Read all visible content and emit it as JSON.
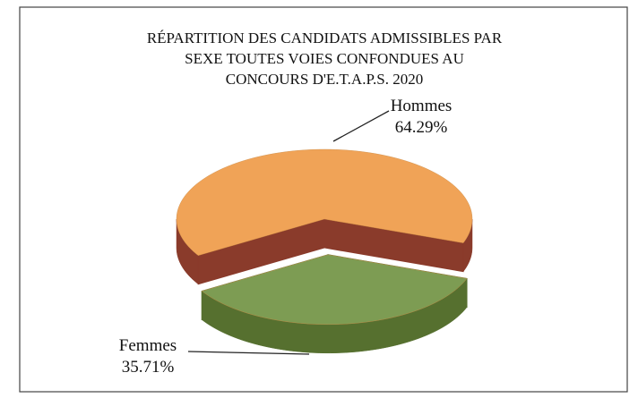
{
  "chart_data": {
    "type": "pie",
    "title": [
      "RÉPARTITION DES CANDIDATS ADMISSIBLES PAR",
      "SEXE TOUTES VOIES CONFONDUES AU",
      "CONCOURS D'E.T.A.P.S.  2020"
    ],
    "categories": [
      "Hommes",
      "Femmes"
    ],
    "values": [
      64.29,
      35.71
    ],
    "value_labels": [
      "64.29%",
      "35.71%"
    ],
    "colors": [
      "#f0a357",
      "#7d9c53"
    ],
    "side_colors": [
      "#8a3b2b",
      "#56702f"
    ]
  }
}
